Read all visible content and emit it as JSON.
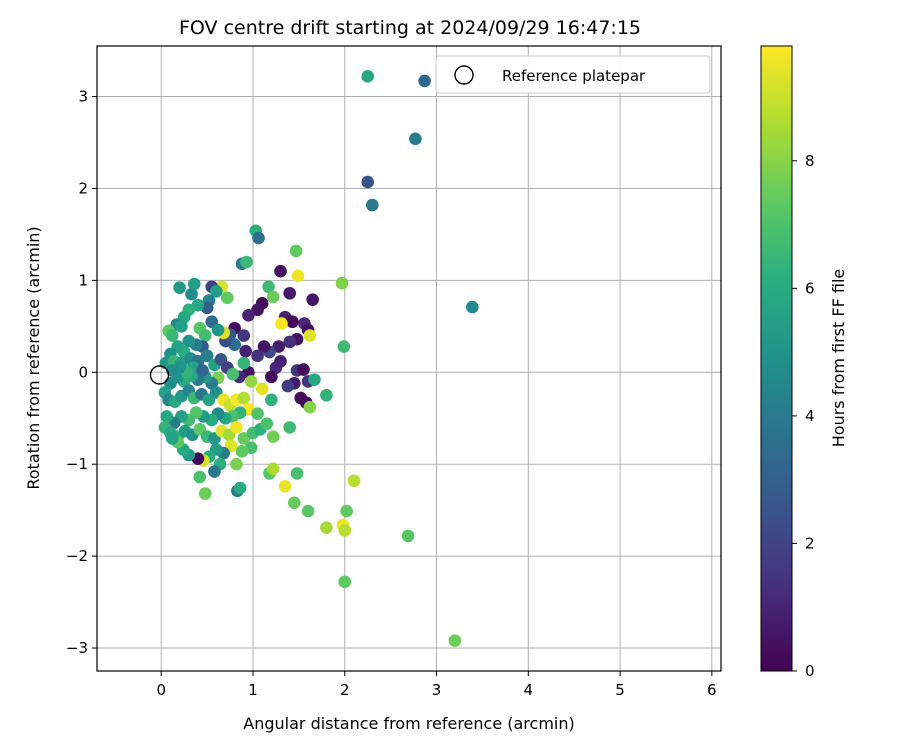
{
  "chart_data": {
    "type": "scatter",
    "title": "FOV centre drift starting at 2024/09/29 16:47:15",
    "xlabel": "Angular distance from reference (arcmin)",
    "ylabel": "Rotation from reference (arcmin)",
    "xlim": [
      -0.7,
      6.1
    ],
    "ylim": [
      -3.25,
      3.55
    ],
    "xticks": [
      0,
      1,
      2,
      3,
      4,
      5,
      6
    ],
    "yticks": [
      -3,
      -2,
      -1,
      0,
      1,
      2,
      3
    ],
    "grid": true,
    "legend": {
      "placement": "top-right",
      "entries": [
        "Reference platepar"
      ]
    },
    "reference_point": {
      "x": 0,
      "y": 0
    },
    "colorbar": {
      "label": "Hours from first FF file",
      "colormap": "viridis",
      "range": [
        0,
        9.8
      ],
      "ticks": [
        0,
        2,
        4,
        6,
        8
      ]
    },
    "points": [
      [
        2.25,
        3.22,
        5.9
      ],
      [
        2.87,
        3.17,
        3.4
      ],
      [
        2.77,
        2.54,
        4.2
      ],
      [
        2.25,
        2.07,
        2.5
      ],
      [
        2.3,
        1.82,
        3.9
      ],
      [
        3.39,
        0.71,
        4.6
      ],
      [
        1.03,
        1.54,
        6.2
      ],
      [
        1.06,
        1.46,
        3.7
      ],
      [
        0.88,
        1.18,
        4.1
      ],
      [
        0.93,
        1.2,
        6.6
      ],
      [
        1.47,
        1.32,
        7.4
      ],
      [
        1.3,
        1.1,
        0.4
      ],
      [
        1.49,
        1.05,
        9.6
      ],
      [
        1.97,
        0.97,
        7.9
      ],
      [
        1.65,
        0.79,
        0.6
      ],
      [
        1.4,
        0.86,
        0.7
      ],
      [
        1.17,
        0.93,
        6.7
      ],
      [
        1.22,
        0.82,
        7.6
      ],
      [
        1.1,
        0.75,
        0.3
      ],
      [
        1.05,
        0.68,
        0.5
      ],
      [
        0.95,
        0.62,
        1.0
      ],
      [
        1.35,
        0.6,
        0.9
      ],
      [
        1.43,
        0.55,
        0.2
      ],
      [
        1.56,
        0.53,
        1.2
      ],
      [
        1.6,
        0.46,
        0.4
      ],
      [
        1.31,
        0.53,
        9.7
      ],
      [
        1.62,
        0.4,
        9.3
      ],
      [
        1.48,
        0.36,
        0.5
      ],
      [
        1.4,
        0.33,
        1.3
      ],
      [
        1.28,
        0.28,
        0.8
      ],
      [
        1.18,
        0.22,
        2.2
      ],
      [
        1.12,
        0.28,
        0.6
      ],
      [
        1.05,
        0.18,
        1.5
      ],
      [
        0.92,
        0.23,
        0.9
      ],
      [
        0.8,
        0.3,
        3.5
      ],
      [
        0.7,
        0.34,
        2.4
      ],
      [
        1.25,
        0.05,
        1.1
      ],
      [
        1.3,
        0.12,
        0.9
      ],
      [
        1.48,
        0.02,
        1.6
      ],
      [
        1.55,
        0.03,
        0.3
      ],
      [
        1.6,
        -0.1,
        1.4
      ],
      [
        1.45,
        -0.12,
        0.7
      ],
      [
        1.52,
        -0.28,
        0.4
      ],
      [
        1.58,
        -0.33,
        0.2
      ],
      [
        1.62,
        -0.38,
        8.0
      ],
      [
        1.38,
        -0.15,
        1.8
      ],
      [
        1.2,
        -0.05,
        0.3
      ],
      [
        0.95,
        0.0,
        0.5
      ],
      [
        0.85,
        -0.05,
        1.2
      ],
      [
        0.9,
        0.1,
        6.4
      ],
      [
        0.8,
        0.48,
        0.4
      ],
      [
        0.9,
        0.4,
        1.6
      ],
      [
        0.75,
        0.41,
        2.8
      ],
      [
        0.68,
        0.43,
        9.4
      ],
      [
        0.66,
        0.93,
        9.2
      ],
      [
        0.72,
        0.81,
        7.4
      ],
      [
        0.55,
        0.93,
        2.0
      ],
      [
        0.6,
        0.88,
        5.5
      ],
      [
        0.52,
        0.78,
        4.4
      ],
      [
        0.5,
        0.7,
        3.0
      ],
      [
        0.4,
        0.73,
        5.8
      ],
      [
        0.36,
        0.96,
        5.5
      ],
      [
        0.33,
        0.85,
        4.8
      ],
      [
        0.2,
        0.92,
        5.2
      ],
      [
        0.3,
        0.68,
        6.3
      ],
      [
        0.25,
        0.6,
        5.9
      ],
      [
        0.17,
        0.52,
        4.6
      ],
      [
        0.22,
        0.5,
        5.5
      ],
      [
        0.08,
        0.45,
        7.4
      ],
      [
        0.12,
        0.4,
        6.6
      ],
      [
        0.42,
        0.48,
        7.2
      ],
      [
        0.48,
        0.4,
        6.8
      ],
      [
        0.55,
        0.55,
        3.5
      ],
      [
        0.62,
        0.46,
        5.1
      ],
      [
        0.45,
        0.28,
        2.9
      ],
      [
        0.38,
        0.3,
        4.2
      ],
      [
        0.3,
        0.34,
        5.0
      ],
      [
        0.25,
        0.22,
        6.1
      ],
      [
        0.18,
        0.28,
        5.7
      ],
      [
        0.1,
        0.2,
        4.9
      ],
      [
        0.05,
        0.1,
        5.2
      ],
      [
        0.14,
        0.12,
        6.5
      ],
      [
        0.22,
        0.1,
        5.4
      ],
      [
        0.32,
        0.15,
        4.7
      ],
      [
        0.4,
        0.12,
        3.8
      ],
      [
        0.5,
        0.18,
        4.3
      ],
      [
        0.58,
        0.08,
        5.6
      ],
      [
        0.65,
        0.14,
        2.6
      ],
      [
        0.72,
        0.05,
        1.9
      ],
      [
        0.78,
        -0.02,
        6.9
      ],
      [
        0.62,
        -0.06,
        7.8
      ],
      [
        0.55,
        -0.12,
        4.1
      ],
      [
        0.48,
        -0.05,
        5.3
      ],
      [
        0.4,
        -0.08,
        4.0
      ],
      [
        0.33,
        -0.04,
        5.9
      ],
      [
        0.25,
        -0.1,
        6.2
      ],
      [
        0.18,
        -0.05,
        5.0
      ],
      [
        0.1,
        -0.12,
        4.8
      ],
      [
        0.04,
        -0.22,
        5.5
      ],
      [
        0.08,
        -0.3,
        4.5
      ],
      [
        0.15,
        -0.32,
        6.0
      ],
      [
        0.22,
        -0.26,
        5.2
      ],
      [
        0.3,
        -0.2,
        4.4
      ],
      [
        0.36,
        -0.28,
        6.6
      ],
      [
        0.44,
        -0.24,
        3.9
      ],
      [
        0.52,
        -0.3,
        5.7
      ],
      [
        0.6,
        -0.22,
        4.9
      ],
      [
        0.68,
        -0.3,
        9.5
      ],
      [
        0.75,
        -0.36,
        9.0
      ],
      [
        0.82,
        -0.3,
        9.7
      ],
      [
        0.9,
        -0.28,
        8.7
      ],
      [
        0.95,
        -0.4,
        9.8
      ],
      [
        0.86,
        -0.44,
        6.3
      ],
      [
        0.78,
        -0.48,
        7.0
      ],
      [
        0.7,
        -0.5,
        5.9
      ],
      [
        0.62,
        -0.45,
        4.6
      ],
      [
        0.55,
        -0.52,
        6.1
      ],
      [
        0.46,
        -0.48,
        5.3
      ],
      [
        0.38,
        -0.44,
        7.1
      ],
      [
        0.3,
        -0.52,
        6.8
      ],
      [
        0.22,
        -0.48,
        5.6
      ],
      [
        0.14,
        -0.55,
        4.2
      ],
      [
        0.06,
        -0.48,
        5.9
      ],
      [
        0.04,
        -0.6,
        6.4
      ],
      [
        0.1,
        -0.66,
        5.8
      ],
      [
        0.18,
        -0.7,
        6.2
      ],
      [
        0.26,
        -0.64,
        5.4
      ],
      [
        0.34,
        -0.68,
        4.9
      ],
      [
        0.42,
        -0.62,
        7.3
      ],
      [
        0.5,
        -0.7,
        6.6
      ],
      [
        0.58,
        -0.72,
        5.2
      ],
      [
        0.66,
        -0.64,
        9.3
      ],
      [
        0.74,
        -0.68,
        8.5
      ],
      [
        0.82,
        -0.6,
        9.6
      ],
      [
        0.9,
        -0.72,
        7.5
      ],
      [
        1.0,
        -0.66,
        6.8
      ],
      [
        1.08,
        -0.62,
        6.3
      ],
      [
        1.15,
        -0.56,
        7.0
      ],
      [
        1.22,
        -0.7,
        7.7
      ],
      [
        1.4,
        -0.6,
        6.7
      ],
      [
        0.98,
        -0.82,
        6.9
      ],
      [
        0.88,
        -0.86,
        7.4
      ],
      [
        0.76,
        -0.8,
        9.3
      ],
      [
        0.68,
        -0.88,
        4.2
      ],
      [
        0.6,
        -0.84,
        5.5
      ],
      [
        0.52,
        -0.92,
        6.1
      ],
      [
        0.46,
        -0.96,
        9.2
      ],
      [
        0.4,
        -0.94,
        0.2
      ],
      [
        0.3,
        -0.9,
        5.3
      ],
      [
        0.24,
        -0.84,
        6.0
      ],
      [
        0.18,
        -0.76,
        7.3
      ],
      [
        0.12,
        -0.72,
        5.7
      ],
      [
        0.64,
        -1.0,
        6.2
      ],
      [
        0.82,
        -1.0,
        7.8
      ],
      [
        0.58,
        -1.08,
        3.9
      ],
      [
        0.42,
        -1.14,
        7.0
      ],
      [
        0.48,
        -1.32,
        7.6
      ],
      [
        0.83,
        -1.29,
        4.0
      ],
      [
        0.86,
        -1.26,
        6.1
      ],
      [
        1.18,
        -1.1,
        7.2
      ],
      [
        1.22,
        -1.05,
        8.6
      ],
      [
        1.48,
        -1.1,
        6.9
      ],
      [
        1.35,
        -1.24,
        9.5
      ],
      [
        1.45,
        -1.42,
        7.5
      ],
      [
        1.6,
        -1.51,
        7.3
      ],
      [
        1.8,
        -1.69,
        8.5
      ],
      [
        1.98,
        -1.66,
        9.6
      ],
      [
        2.0,
        -1.72,
        8.8
      ],
      [
        2.02,
        -1.51,
        7.4
      ],
      [
        2.1,
        -1.18,
        8.8
      ],
      [
        2.69,
        -1.78,
        7.2
      ],
      [
        2.0,
        -2.28,
        7.4
      ],
      [
        3.2,
        -2.92,
        7.6
      ],
      [
        1.8,
        -0.25,
        6.4
      ],
      [
        1.67,
        -0.08,
        5.9
      ],
      [
        1.99,
        0.28,
        6.7
      ],
      [
        1.2,
        -0.3,
        6.3
      ],
      [
        1.05,
        -0.45,
        7.1
      ],
      [
        1.1,
        -0.18,
        9.4
      ],
      [
        0.98,
        -0.1,
        8.2
      ],
      [
        0.35,
        0.05,
        5.6
      ],
      [
        0.28,
        0.0,
        6.4
      ],
      [
        0.2,
        0.05,
        5.1
      ],
      [
        0.12,
        0.02,
        4.7
      ],
      [
        0.45,
        0.02,
        3.3
      ]
    ]
  }
}
